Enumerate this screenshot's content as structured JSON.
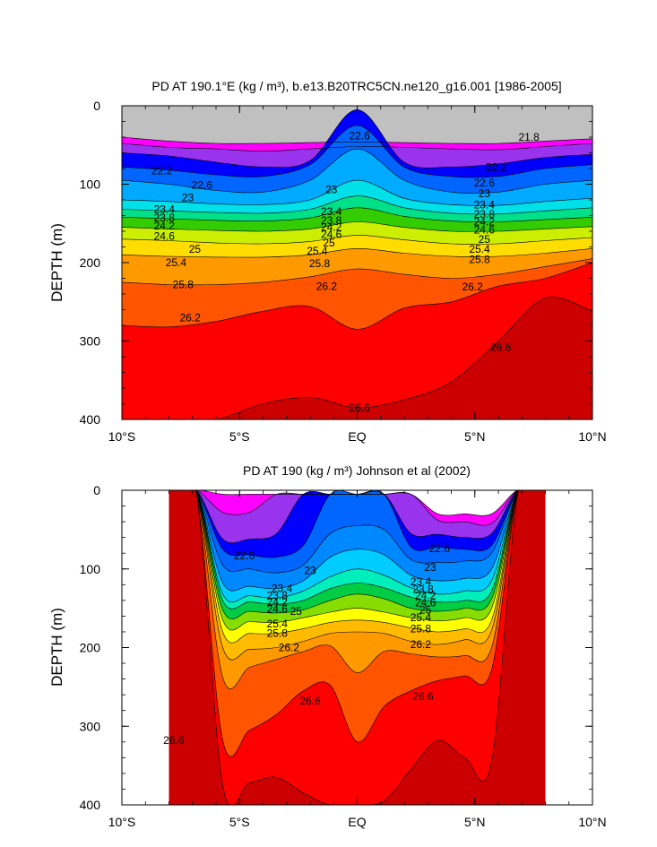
{
  "figure": {
    "panels": [
      {
        "id": "model",
        "title": "PD AT 190.1°E (kg / m³), b.e13.B20TRC5CN.ne120_g16.001 [1986-2005]",
        "ylabel": "DEPTH (m)"
      },
      {
        "id": "obs",
        "title": "PD AT 190 (kg / m³) Johnson et al (2002)",
        "ylabel": "DEPTH (m)"
      }
    ]
  },
  "chart_data": [
    {
      "type": "contour",
      "title": "PD AT 190.1°E (kg / m³), b.e13.B20TRC5CN.ne120_g16.001 [1986-2005]",
      "xlabel": "",
      "ylabel": "DEPTH (m)",
      "xlim": [
        -10,
        10
      ],
      "ylim": [
        400,
        0
      ],
      "x_ticks": [
        -10,
        -5,
        0,
        5,
        10
      ],
      "x_tick_labels": [
        "10°S",
        "5°S",
        "EQ",
        "5°N",
        "10°N"
      ],
      "y_ticks": [
        0,
        100,
        200,
        300,
        400
      ],
      "y_tick_labels": [
        "0",
        "100",
        "200",
        "300",
        "400"
      ],
      "data_extent": [
        -10,
        10
      ],
      "missing_fill": "#c0c0c0",
      "contour_interval": 0.2,
      "colors": [
        "#ff00ff",
        "#cc22ee",
        "#9933ee",
        "#5522ee",
        "#0000ff",
        "#0044ff",
        "#0066ff",
        "#0088ff",
        "#00aaff",
        "#00ccff",
        "#00e0e8",
        "#00eebb",
        "#00e088",
        "#00cc44",
        "#33cc00",
        "#88dd00",
        "#ccee00",
        "#ffff00",
        "#ffdd00",
        "#ffbb00",
        "#ff9900",
        "#ff7700",
        "#ff5500",
        "#ff2200",
        "#ff0000",
        "#e60000",
        "#cc0000"
      ],
      "isopycnals": [
        {
          "level": 21.4,
          "depths": [
            40,
            45,
            48,
            48,
            47,
            46,
            47,
            48,
            48,
            45,
            42
          ]
        },
        {
          "level": 21.8,
          "depths": [
            48,
            53,
            55,
            58,
            55,
            52,
            53,
            55,
            56,
            52,
            48
          ]
        },
        {
          "level": 22.2,
          "depths": [
            60,
            64,
            72,
            78,
            70,
            5,
            72,
            78,
            74,
            66,
            62
          ]
        },
        {
          "level": 22.6,
          "depths": [
            78,
            82,
            88,
            90,
            75,
            25,
            78,
            90,
            90,
            80,
            75
          ]
        },
        {
          "level": 23.0,
          "depths": [
            95,
            100,
            108,
            110,
            95,
            55,
            95,
            110,
            110,
            100,
            95
          ]
        },
        {
          "level": 23.4,
          "depths": [
            120,
            122,
            125,
            126,
            120,
            95,
            118,
            126,
            127,
            122,
            118
          ]
        },
        {
          "level": 23.8,
          "depths": [
            132,
            134,
            136,
            137,
            132,
            115,
            130,
            137,
            138,
            134,
            130
          ]
        },
        {
          "level": 24.2,
          "depths": [
            142,
            144,
            146,
            147,
            143,
            130,
            141,
            147,
            148,
            145,
            142
          ]
        },
        {
          "level": 24.6,
          "depths": [
            155,
            157,
            159,
            160,
            157,
            148,
            155,
            160,
            160,
            157,
            154
          ]
        },
        {
          "level": 25.0,
          "depths": [
            170,
            172,
            175,
            176,
            173,
            165,
            171,
            176,
            176,
            172,
            168
          ]
        },
        {
          "level": 25.4,
          "depths": [
            190,
            192,
            193,
            193,
            190,
            182,
            188,
            192,
            192,
            188,
            182
          ]
        },
        {
          "level": 25.8,
          "depths": [
            225,
            228,
            228,
            225,
            218,
            208,
            215,
            220,
            215,
            205,
            195
          ]
        },
        {
          "level": 26.2,
          "depths": [
            280,
            282,
            275,
            262,
            256,
            285,
            258,
            250,
            230,
            220,
            200
          ]
        },
        {
          "level": 26.6,
          "depths": [
            400,
            400,
            400,
            380,
            372,
            385,
            375,
            352,
            300,
            245,
            262
          ]
        }
      ],
      "contour_labels": [
        {
          "text": "22.6",
          "x": 0.1,
          "y": 38
        },
        {
          "text": "21.8",
          "x": 7.3,
          "y": 40
        },
        {
          "text": "22.2",
          "x": -8.3,
          "y": 83
        },
        {
          "text": "22.2",
          "x": 5.9,
          "y": 78
        },
        {
          "text": "22.6",
          "x": -6.6,
          "y": 101
        },
        {
          "text": "22.6",
          "x": 5.4,
          "y": 98
        },
        {
          "text": "23",
          "x": -7.2,
          "y": 117
        },
        {
          "text": "23",
          "x": -1.1,
          "y": 107
        },
        {
          "text": "23",
          "x": 5.4,
          "y": 112
        },
        {
          "text": "23.4",
          "x": -8.2,
          "y": 132
        },
        {
          "text": "23.4",
          "x": -1.1,
          "y": 135
        },
        {
          "text": "23.4",
          "x": 5.4,
          "y": 126
        },
        {
          "text": "23.8",
          "x": -8.2,
          "y": 143
        },
        {
          "text": "23.8",
          "x": -1.1,
          "y": 146
        },
        {
          "text": "23.8",
          "x": 5.4,
          "y": 138
        },
        {
          "text": "24.2",
          "x": -8.2,
          "y": 153
        },
        {
          "text": "24.2",
          "x": -1.1,
          "y": 155
        },
        {
          "text": "24.2",
          "x": 5.4,
          "y": 148
        },
        {
          "text": "24.6",
          "x": -8.2,
          "y": 166
        },
        {
          "text": "24.6",
          "x": -1.1,
          "y": 164
        },
        {
          "text": "24.6",
          "x": 5.4,
          "y": 158
        },
        {
          "text": "25",
          "x": -6.9,
          "y": 183
        },
        {
          "text": "25",
          "x": -1.2,
          "y": 175
        },
        {
          "text": "25",
          "x": 5.4,
          "y": 170
        },
        {
          "text": "25.4",
          "x": -7.7,
          "y": 200
        },
        {
          "text": "25.4",
          "x": -1.7,
          "y": 185
        },
        {
          "text": "25.4",
          "x": 5.2,
          "y": 183
        },
        {
          "text": "25.8",
          "x": -7.4,
          "y": 228
        },
        {
          "text": "25.8",
          "x": -1.6,
          "y": 201
        },
        {
          "text": "25.8",
          "x": 5.2,
          "y": 196
        },
        {
          "text": "26.2",
          "x": -7.1,
          "y": 270
        },
        {
          "text": "26.2",
          "x": -1.3,
          "y": 230
        },
        {
          "text": "26.2",
          "x": 4.9,
          "y": 231
        },
        {
          "text": "26.6",
          "x": 0.1,
          "y": 385
        },
        {
          "text": "26.6",
          "x": 6.1,
          "y": 308
        }
      ]
    },
    {
      "type": "contour",
      "title": "PD AT 190 (kg / m³) Johnson et al (2002)",
      "xlabel": "",
      "ylabel": "DEPTH (m)",
      "xlim": [
        -10,
        10
      ],
      "ylim": [
        400,
        0
      ],
      "x_ticks": [
        -10,
        -5,
        0,
        5,
        10
      ],
      "x_tick_labels": [
        "10°S",
        "5°S",
        "EQ",
        "5°N",
        "10°N"
      ],
      "y_ticks": [
        0,
        100,
        200,
        300,
        400
      ],
      "y_tick_labels": [
        "0",
        "100",
        "200",
        "300",
        "400"
      ],
      "data_extent": [
        -8,
        8
      ],
      "missing_fill": "#ffffff",
      "contour_interval": 0.2,
      "colors": [
        "#ff00ff",
        "#cc22ee",
        "#9933ee",
        "#5522ee",
        "#0000ff",
        "#0044ff",
        "#0066ff",
        "#0088ff",
        "#00aaff",
        "#00ccff",
        "#00e0e8",
        "#00eebb",
        "#00e088",
        "#00cc44",
        "#33cc00",
        "#88dd00",
        "#ccee00",
        "#ffff00",
        "#ffdd00",
        "#ffbb00",
        "#ff9900",
        "#ff7700",
        "#ff5500",
        "#ff2200",
        "#ff0000",
        "#e60000",
        "#cc0000"
      ],
      "isopycnals": [
        {
          "level": 21.4,
          "depths": [
            -1,
            -1,
            5,
            5,
            5,
            5,
            5,
            5,
            5,
            5,
            30,
            30,
            30,
            -1,
            -1
          ]
        },
        {
          "level": 21.8,
          "depths": [
            -1,
            -1,
            28,
            28,
            5,
            5,
            5,
            5,
            5,
            5,
            38,
            40,
            42,
            -1,
            -1
          ]
        },
        {
          "level": 22.2,
          "depths": [
            -1,
            -1,
            62,
            62,
            55,
            5,
            5,
            5,
            5,
            55,
            56,
            60,
            55,
            -1,
            -1
          ]
        },
        {
          "level": 22.6,
          "depths": [
            -1,
            -1,
            75,
            82,
            85,
            70,
            5,
            5,
            5,
            72,
            72,
            75,
            70,
            -1,
            -1
          ]
        },
        {
          "level": 23.0,
          "depths": [
            -1,
            -1,
            95,
            100,
            105,
            95,
            55,
            45,
            50,
            88,
            92,
            90,
            80,
            -1,
            -1
          ]
        },
        {
          "level": 23.4,
          "depths": [
            -1,
            -1,
            118,
            122,
            125,
            115,
            85,
            75,
            82,
            108,
            115,
            112,
            100,
            -1,
            -1
          ]
        },
        {
          "level": 23.8,
          "depths": [
            -1,
            -1,
            132,
            134,
            137,
            128,
            110,
            100,
            108,
            124,
            132,
            128,
            115,
            -1,
            -1
          ]
        },
        {
          "level": 24.2,
          "depths": [
            -1,
            -1,
            140,
            142,
            145,
            140,
            125,
            118,
            124,
            136,
            142,
            140,
            128,
            -1,
            -1
          ]
        },
        {
          "level": 24.6,
          "depths": [
            -1,
            -1,
            152,
            154,
            156,
            152,
            140,
            132,
            138,
            150,
            154,
            150,
            138,
            -1,
            -1
          ]
        },
        {
          "level": 25.0,
          "depths": [
            -1,
            -1,
            165,
            167,
            168,
            162,
            155,
            150,
            155,
            162,
            166,
            162,
            150,
            -1,
            -1
          ]
        },
        {
          "level": 25.4,
          "depths": [
            -1,
            -1,
            180,
            182,
            182,
            176,
            168,
            165,
            168,
            175,
            180,
            176,
            165,
            -1,
            -1
          ]
        },
        {
          "level": 25.8,
          "depths": [
            -1,
            -1,
            200,
            202,
            200,
            192,
            182,
            180,
            182,
            192,
            196,
            190,
            178,
            -1,
            -1
          ]
        },
        {
          "level": 26.2,
          "depths": [
            -1,
            -1,
            238,
            225,
            215,
            205,
            198,
            232,
            205,
            208,
            212,
            210,
            200,
            -1,
            -1
          ]
        },
        {
          "level": 26.6,
          "depths": [
            -1,
            -1,
            318,
            305,
            285,
            255,
            248,
            320,
            275,
            255,
            242,
            236,
            228,
            -1,
            -1
          ]
        },
        {
          "level": 27.0,
          "depths": [
            -1,
            -1,
            375,
            372,
            365,
            385,
            400,
            400,
            395,
            355,
            318,
            340,
            345,
            -1,
            -1
          ]
        }
      ],
      "contour_labels": [
        {
          "text": "22.6",
          "x": -4.8,
          "y": 83
        },
        {
          "text": "22.6",
          "x": 3.5,
          "y": 74
        },
        {
          "text": "23",
          "x": -2.0,
          "y": 102
        },
        {
          "text": "23",
          "x": 3.1,
          "y": 98
        },
        {
          "text": "23.4",
          "x": -3.2,
          "y": 125
        },
        {
          "text": "23.4",
          "x": 2.7,
          "y": 116
        },
        {
          "text": "23.8",
          "x": -3.4,
          "y": 134
        },
        {
          "text": "23.8",
          "x": 2.8,
          "y": 126
        },
        {
          "text": "24.2",
          "x": -3.4,
          "y": 142
        },
        {
          "text": "24.2",
          "x": 2.9,
          "y": 134
        },
        {
          "text": "24.6",
          "x": -3.4,
          "y": 151
        },
        {
          "text": "24.6",
          "x": 2.9,
          "y": 143
        },
        {
          "text": "25",
          "x": -2.6,
          "y": 154
        },
        {
          "text": "25",
          "x": 2.9,
          "y": 152
        },
        {
          "text": "25.4",
          "x": -3.4,
          "y": 170
        },
        {
          "text": "25.4",
          "x": 2.7,
          "y": 162
        },
        {
          "text": "25.8",
          "x": -3.4,
          "y": 182
        },
        {
          "text": "25.8",
          "x": 2.7,
          "y": 176
        },
        {
          "text": "26.2",
          "x": -2.9,
          "y": 200
        },
        {
          "text": "26.2",
          "x": 2.7,
          "y": 196
        },
        {
          "text": "26.6",
          "x": -2.0,
          "y": 268
        },
        {
          "text": "26.6",
          "x": 2.8,
          "y": 262
        },
        {
          "text": "26.6",
          "x": -7.8,
          "y": 318
        }
      ]
    }
  ]
}
